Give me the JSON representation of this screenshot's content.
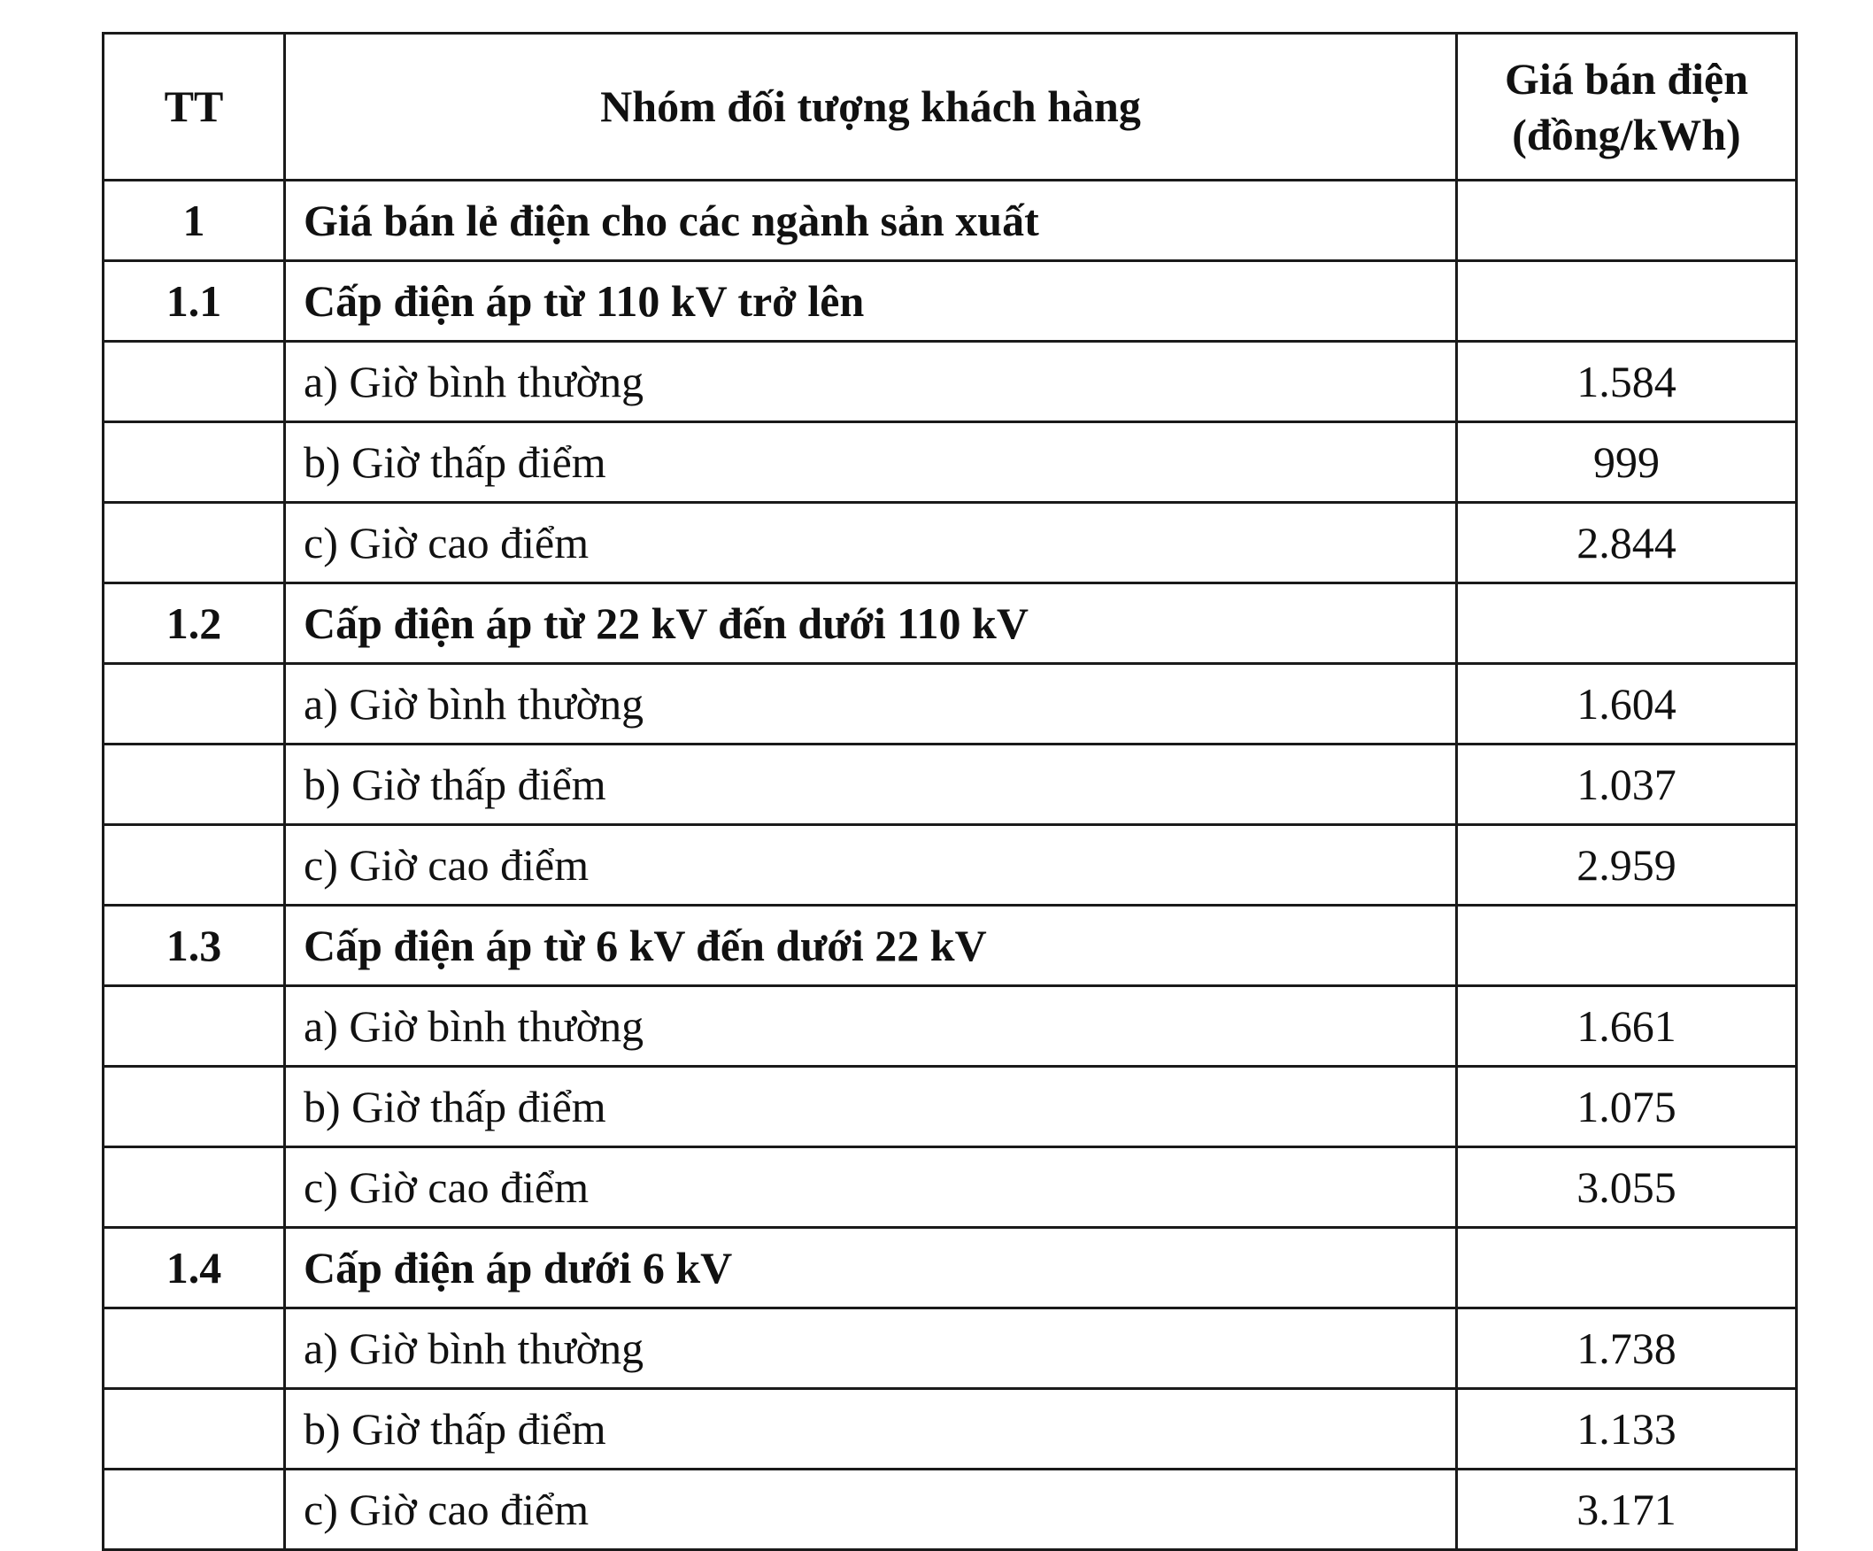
{
  "table": {
    "headers": {
      "tt": "TT",
      "group": "Nhóm đối tượng khách hàng",
      "price_line1": "Giá bán điện",
      "price_line2": "(đồng/kWh)"
    },
    "rows": [
      {
        "tt": "1",
        "name": "Giá bán lẻ điện cho các ngành sản xuất",
        "price": "",
        "group": true
      },
      {
        "tt": "1.1",
        "name": "Cấp điện áp từ 110 kV trở lên",
        "price": "",
        "group": true
      },
      {
        "tt": "",
        "name": "a) Giờ bình thường",
        "price": "1.584"
      },
      {
        "tt": "",
        "name": "b) Giờ thấp điểm",
        "price": "999"
      },
      {
        "tt": "",
        "name": "c) Giờ cao điểm",
        "price": "2.844"
      },
      {
        "tt": "1.2",
        "name": "Cấp điện áp từ 22 kV đến dưới 110 kV",
        "price": "",
        "group": true
      },
      {
        "tt": "",
        "name": "a) Giờ bình thường",
        "price": "1.604"
      },
      {
        "tt": "",
        "name": "b) Giờ thấp điểm",
        "price": "1.037"
      },
      {
        "tt": "",
        "name": "c) Giờ cao điểm",
        "price": "2.959"
      },
      {
        "tt": "1.3",
        "name": "Cấp điện áp từ 6 kV đến dưới 22 kV",
        "price": "",
        "group": true
      },
      {
        "tt": "",
        "name": "a) Giờ bình thường",
        "price": "1.661"
      },
      {
        "tt": "",
        "name": "b) Giờ thấp điểm",
        "price": "1.075"
      },
      {
        "tt": "",
        "name": "c) Giờ cao điểm",
        "price": "3.055"
      },
      {
        "tt": "1.4",
        "name": "Cấp điện áp dưới 6 kV",
        "price": "",
        "group": true
      },
      {
        "tt": "",
        "name": "a) Giờ bình thường",
        "price": "1.738"
      },
      {
        "tt": "",
        "name": "b) Giờ thấp điểm",
        "price": "1.133"
      },
      {
        "tt": "",
        "name": "c) Giờ cao điểm",
        "price": "3.171"
      }
    ]
  }
}
